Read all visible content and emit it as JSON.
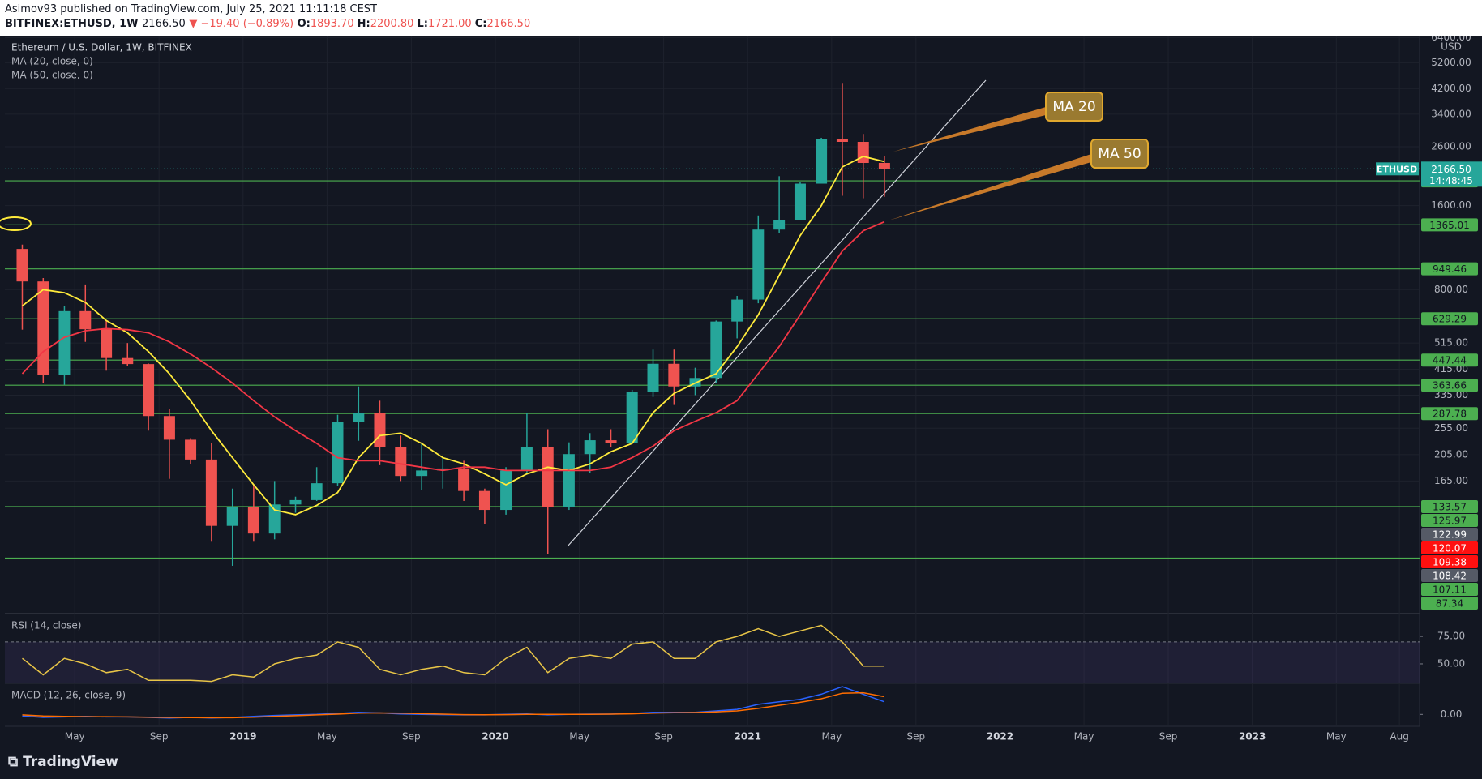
{
  "header": {
    "publisher": "Asimov93 published on TradingView.com, July 25, 2021 11:11:18 CEST",
    "symbol": "BITFINEX:ETHUSD, 1W",
    "price": "2166.50",
    "change": "▼ −19.40 (−0.89%)",
    "ohlc": [
      {
        "key": "O:",
        "value": "1893.70"
      },
      {
        "key": "H:",
        "value": "2200.80"
      },
      {
        "key": "L:",
        "value": "1721.00"
      },
      {
        "key": "C:",
        "value": "2166.50"
      }
    ]
  },
  "footer": {
    "brand": "TradingView"
  },
  "chart_data": [
    {
      "type": "candlestick",
      "title": "Ethereum / U.S. Dollar, 1W, BITFINEX",
      "x": [
        2018.125,
        2018.208,
        2018.292,
        2018.375,
        2018.458,
        2018.542,
        2018.625,
        2018.708,
        2018.792,
        2018.875,
        2018.958,
        2019.042,
        2019.125,
        2019.208,
        2019.292,
        2019.375,
        2019.458,
        2019.542,
        2019.625,
        2019.708,
        2019.792,
        2019.875,
        2019.958,
        2020.042,
        2020.125,
        2020.208,
        2020.292,
        2020.375,
        2020.458,
        2020.542,
        2020.625,
        2020.708,
        2020.792,
        2020.875,
        2020.958,
        2021.042,
        2021.125,
        2021.208,
        2021.292,
        2021.375,
        2021.458,
        2021.542
      ],
      "open": [
        1119,
        856,
        395,
        670,
        577,
        455,
        433,
        282,
        232,
        197,
        114,
        133,
        107,
        136,
        141,
        162,
        268,
        290,
        218,
        172,
        180,
        183,
        152,
        130,
        180,
        218,
        133,
        206,
        231,
        226,
        345,
        434,
        360,
        386,
        615,
        737,
        1313,
        1417,
        1918,
        2773,
        2707,
        2275
      ],
      "high": [
        1160,
        880,
        700,
        835,
        620,
        515,
        435,
        300,
        235,
        225,
        155,
        160,
        165,
        145,
        185,
        285,
        360,
        320,
        240,
        225,
        200,
        195,
        155,
        185,
        290,
        253,
        227,
        245,
        253,
        350,
        488,
        488,
        420,
        620,
        760,
        1475,
        2040,
        1945,
        2800,
        4372,
        2890,
        2400
      ],
      "low": [
        575,
        370,
        365,
        520,
        410,
        425,
        250,
        168,
        190,
        100,
        82,
        100,
        102,
        127,
        140,
        158,
        230,
        188,
        165,
        153,
        155,
        140,
        116,
        125,
        177,
        90,
        130,
        176,
        218,
        224,
        330,
        309,
        335,
        370,
        535,
        715,
        1275,
        1440,
        1940,
        1735,
        1700,
        1721
      ],
      "close": [
        856,
        395,
        670,
        577,
        455,
        433,
        282,
        232,
        197,
        114,
        133,
        107,
        136,
        141,
        162,
        268,
        290,
        218,
        172,
        180,
        183,
        152,
        130,
        180,
        218,
        133,
        206,
        231,
        226,
        345,
        434,
        360,
        386,
        615,
        737,
        1313,
        1417,
        1918,
        2773,
        2707,
        2275,
        2166.5
      ],
      "up_color": "#26a69a",
      "down_color": "#ef5350",
      "series": [
        {
          "name": "MA (20, close, 0)",
          "color": "#ffeb3b",
          "values": [
            700,
            800,
            780,
            720,
            620,
            560,
            480,
            400,
            320,
            250,
            200,
            160,
            130,
            125,
            135,
            150,
            200,
            240,
            245,
            225,
            200,
            190,
            175,
            160,
            175,
            185,
            180,
            190,
            210,
            225,
            290,
            340,
            370,
            400,
            500,
            650,
            900,
            1250,
            1600,
            2200,
            2400,
            2300
          ]
        },
        {
          "name": "MA (50, close, 0)",
          "color": "#f23645",
          "values": [
            400,
            480,
            540,
            570,
            580,
            575,
            560,
            520,
            470,
            420,
            370,
            320,
            280,
            250,
            225,
            200,
            195,
            195,
            190,
            185,
            180,
            185,
            185,
            180,
            180,
            180,
            180,
            180,
            185,
            200,
            220,
            250,
            270,
            290,
            320,
            400,
            500,
            650,
            850,
            1100,
            1300,
            1400
          ]
        }
      ],
      "log_scale": true,
      "grid": true,
      "ylim": [
        56,
        6500
      ],
      "yticks": [
        {
          "value": 6400,
          "label": "6400.00"
        },
        {
          "value": 5200,
          "label": "5200.00"
        },
        {
          "value": 4200,
          "label": "4200.00"
        },
        {
          "value": 3400,
          "label": "3400.00"
        },
        {
          "value": 2600,
          "label": "2600.00"
        },
        {
          "value": 1600,
          "label": "1600.00"
        },
        {
          "value": 800,
          "label": "800.00"
        },
        {
          "value": 515,
          "label": "515.00"
        },
        {
          "value": 415,
          "label": "415.00"
        },
        {
          "value": 335,
          "label": "335.00"
        },
        {
          "value": 255,
          "label": "255.00"
        },
        {
          "value": 205,
          "label": "205.00"
        },
        {
          "value": 165,
          "label": "165.00"
        }
      ],
      "currency": "USD",
      "xlim": [
        2018.056,
        2023.663
      ],
      "xticks": [
        {
          "value": 2018.333,
          "label": "May"
        },
        {
          "value": 2018.667,
          "label": "Sep"
        },
        2019,
        {
          "value": 2019.333,
          "label": "May"
        },
        {
          "value": 2019.667,
          "label": "Sep"
        },
        2020,
        {
          "value": 2020.333,
          "label": "May"
        },
        {
          "value": 2020.667,
          "label": "Sep"
        },
        2021,
        {
          "value": 2021.333,
          "label": "May"
        },
        {
          "value": 2021.667,
          "label": "Sep"
        },
        2022,
        {
          "value": 2022.333,
          "label": "May"
        },
        {
          "value": 2022.667,
          "label": "Sep"
        },
        2023,
        {
          "value": 2023.333,
          "label": "May"
        },
        {
          "value": 2023.583,
          "label": "Aug"
        }
      ],
      "levels": [
        {
          "value": 1962.84,
          "color": "#4caf50",
          "line": true
        },
        {
          "value": 1365.01,
          "color": "#4caf50",
          "line": true
        },
        {
          "value": 949.46,
          "color": "#4caf50",
          "line": true
        },
        {
          "value": 629.29,
          "color": "#4caf50",
          "line": true
        },
        {
          "value": 447.44,
          "color": "#4caf50",
          "line": true
        },
        {
          "value": 363.66,
          "color": "#4caf50",
          "line": true
        },
        {
          "value": 287.78,
          "color": "#4caf50",
          "line": true
        },
        {
          "value": 133.57,
          "color": "#4caf50",
          "line": true
        },
        {
          "value": 125.97,
          "color": "#4caf50",
          "line": false
        },
        {
          "value": 122.99,
          "color": "#555a66",
          "line": false
        },
        {
          "value": 120.07,
          "color": "#ff1010",
          "line": false
        },
        {
          "value": 109.38,
          "color": "#ff1010",
          "line": false
        },
        {
          "value": 108.42,
          "color": "#555a66",
          "line": false
        },
        {
          "value": 107.11,
          "color": "#4caf50",
          "line": false
        },
        {
          "value": 87.34,
          "color": "#4caf50",
          "line": true
        }
      ],
      "last_price": {
        "symbol": "ETHUSD",
        "value": 2166.5,
        "label": "2166.50",
        "countdown": "14:48:45",
        "color": "#26a69a"
      },
      "annotations": [
        {
          "text": "MA 20"
        },
        {
          "text": "MA 50"
        }
      ]
    },
    {
      "type": "line",
      "title": "RSI (14, close)",
      "x": [
        2018.125,
        2018.208,
        2018.292,
        2018.375,
        2018.458,
        2018.542,
        2018.625,
        2018.708,
        2018.792,
        2018.875,
        2018.958,
        2019.042,
        2019.125,
        2019.208,
        2019.292,
        2019.375,
        2019.458,
        2019.542,
        2019.625,
        2019.708,
        2019.792,
        2019.875,
        2019.958,
        2020.042,
        2020.125,
        2020.208,
        2020.292,
        2020.375,
        2020.458,
        2020.542,
        2020.625,
        2020.708,
        2020.792,
        2020.875,
        2020.958,
        2021.042,
        2021.125,
        2021.208,
        2021.292,
        2021.375,
        2021.458,
        2021.542
      ],
      "series": [
        {
          "color": "#e8c547",
          "values": [
            55,
            40,
            55,
            50,
            42,
            45,
            35,
            35,
            35,
            34,
            40,
            38,
            50,
            55,
            58,
            70,
            65,
            45,
            40,
            45,
            48,
            42,
            40,
            55,
            65,
            42,
            55,
            58,
            55,
            68,
            70,
            55,
            55,
            70,
            75,
            82,
            75,
            80,
            85,
            70,
            48,
            48
          ]
        }
      ],
      "ylim": [
        33,
        95
      ],
      "yticks": [
        {
          "value": 75,
          "label": "75.00"
        },
        {
          "value": 50,
          "label": "50.00"
        }
      ],
      "band": [
        30,
        70
      ],
      "band_color": "#7e57c2"
    },
    {
      "type": "line",
      "title": "MACD (12, 26, close, 9)",
      "x": [
        2018.125,
        2018.208,
        2018.292,
        2018.375,
        2018.458,
        2018.542,
        2018.625,
        2018.708,
        2018.792,
        2018.875,
        2018.958,
        2019.042,
        2019.125,
        2019.208,
        2019.292,
        2019.375,
        2019.458,
        2019.542,
        2019.625,
        2019.708,
        2019.792,
        2019.875,
        2019.958,
        2020.042,
        2020.125,
        2020.208,
        2020.292,
        2020.375,
        2020.458,
        2020.542,
        2020.625,
        2020.708,
        2020.792,
        2020.875,
        2020.958,
        2021.042,
        2021.125,
        2021.208,
        2021.292,
        2021.375,
        2021.458,
        2021.542
      ],
      "series": [
        {
          "color": "#2962ff",
          "values": [
            -30,
            -60,
            -50,
            -40,
            -50,
            -50,
            -60,
            -70,
            -60,
            -70,
            -60,
            -40,
            -20,
            -10,
            0,
            20,
            40,
            30,
            10,
            0,
            -5,
            -10,
            -10,
            0,
            10,
            -10,
            0,
            5,
            5,
            20,
            40,
            40,
            40,
            70,
            100,
            200,
            250,
            300,
            400,
            550,
            400,
            250
          ]
        },
        {
          "color": "#ff6d00",
          "values": [
            -10,
            -30,
            -40,
            -45,
            -45,
            -50,
            -55,
            -60,
            -62,
            -65,
            -65,
            -55,
            -40,
            -25,
            -10,
            5,
            25,
            30,
            25,
            15,
            5,
            -5,
            -8,
            -5,
            0,
            0,
            0,
            2,
            5,
            12,
            25,
            32,
            38,
            50,
            70,
            120,
            180,
            240,
            310,
            420,
            430,
            350
          ]
        }
      ],
      "ylim": [
        -220,
        600
      ],
      "yticks": [
        {
          "value": 0,
          "label": "0.00"
        }
      ]
    }
  ]
}
